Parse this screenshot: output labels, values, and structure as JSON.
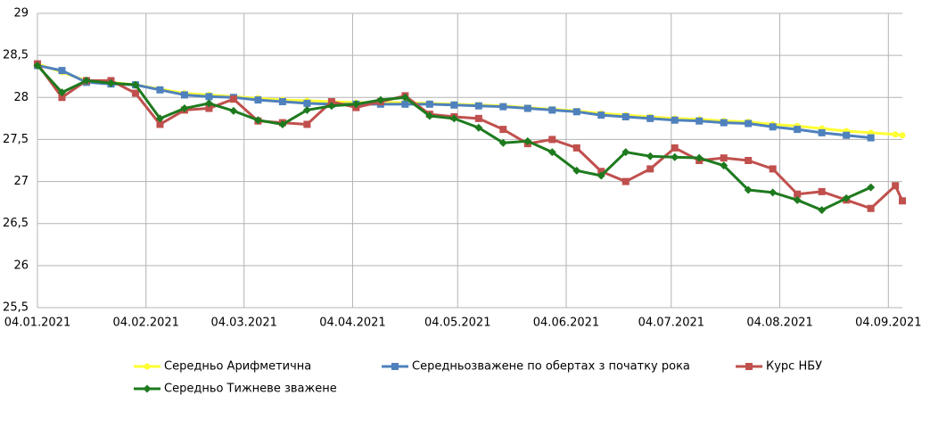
{
  "chart_data": {
    "type": "line",
    "x": [
      "04.01.2021",
      "11.01.2021",
      "18.01.2021",
      "25.01.2021",
      "01.02.2021",
      "08.02.2021",
      "15.02.2021",
      "22.02.2021",
      "01.03.2021",
      "08.03.2021",
      "15.03.2021",
      "22.03.2021",
      "29.03.2021",
      "05.04.2021",
      "12.04.2021",
      "19.04.2021",
      "26.04.2021",
      "03.05.2021",
      "10.05.2021",
      "17.05.2021",
      "24.05.2021",
      "31.05.2021",
      "07.06.2021",
      "14.06.2021",
      "21.06.2021",
      "28.06.2021",
      "05.07.2021",
      "12.07.2021",
      "19.07.2021",
      "26.07.2021",
      "02.08.2021",
      "09.08.2021",
      "16.08.2021",
      "23.08.2021",
      "30.08.2021",
      "06.09.2021",
      "08.09.2021"
    ],
    "series": [
      {
        "name": "Середньо Арифметична",
        "color": "#ffff33",
        "marker": "circle",
        "values": [
          28.4,
          28.3,
          28.2,
          28.18,
          28.15,
          28.1,
          28.05,
          28.03,
          28.01,
          27.99,
          27.97,
          27.96,
          27.95,
          27.94,
          27.94,
          27.94,
          27.93,
          27.92,
          27.91,
          27.9,
          27.88,
          27.86,
          27.84,
          27.81,
          27.79,
          27.77,
          27.75,
          27.74,
          27.72,
          27.71,
          27.68,
          27.66,
          27.63,
          27.6,
          27.58,
          27.56,
          27.55
        ]
      },
      {
        "name": "Середньозважене по обертах з початку рока",
        "color": "#4f81bd",
        "marker": "square",
        "values": [
          28.38,
          28.32,
          28.18,
          28.16,
          28.15,
          28.09,
          28.03,
          28.01,
          28.0,
          27.97,
          27.95,
          27.93,
          27.92,
          27.92,
          27.92,
          27.92,
          27.92,
          27.91,
          27.9,
          27.89,
          27.87,
          27.85,
          27.83,
          27.79,
          27.77,
          27.75,
          27.73,
          27.72,
          27.7,
          27.69,
          27.65,
          27.62,
          27.58,
          27.55,
          27.52,
          null,
          null
        ]
      },
      {
        "name": "Курс НБУ",
        "color": "#c0504d",
        "marker": "square",
        "values": [
          28.4,
          28.0,
          28.2,
          28.2,
          28.05,
          27.68,
          27.85,
          27.87,
          27.98,
          27.72,
          27.7,
          27.68,
          27.95,
          27.88,
          27.95,
          28.02,
          27.8,
          27.77,
          27.75,
          27.62,
          27.45,
          27.5,
          27.4,
          27.12,
          27.0,
          27.15,
          27.4,
          27.25,
          27.28,
          27.25,
          27.15,
          26.85,
          26.88,
          26.78,
          26.68,
          26.95,
          26.77
        ]
      },
      {
        "name": "Середньо Тижневе зважене",
        "color": "#1e7a1e",
        "marker": "diamond",
        "values": [
          28.38,
          28.06,
          28.2,
          28.17,
          28.15,
          27.75,
          27.87,
          27.93,
          27.84,
          27.73,
          27.68,
          27.85,
          27.9,
          27.92,
          27.97,
          28.0,
          27.78,
          27.75,
          27.64,
          27.46,
          27.48,
          27.35,
          27.13,
          27.07,
          27.35,
          27.3,
          27.29,
          27.28,
          27.19,
          26.9,
          26.87,
          26.78,
          26.66,
          26.8,
          26.93,
          null,
          null
        ]
      }
    ],
    "xlim": [
      "04.01.2021",
      "08.09.2021"
    ],
    "xticks": [
      "04.01.2021",
      "04.02.2021",
      "04.03.2021",
      "04.04.2021",
      "04.05.2021",
      "04.06.2021",
      "04.07.2021",
      "04.08.2021",
      "04.09.2021"
    ],
    "ylim": [
      25.5,
      29
    ],
    "yticks": [
      {
        "value": 25.5,
        "label": "25,5"
      },
      26,
      {
        "value": 26.5,
        "label": "26,5"
      },
      27,
      {
        "value": 27.5,
        "label": "27,5"
      },
      28,
      {
        "value": 28.5,
        "label": "28,5"
      },
      29
    ],
    "grid": true,
    "legend": "bottom"
  }
}
